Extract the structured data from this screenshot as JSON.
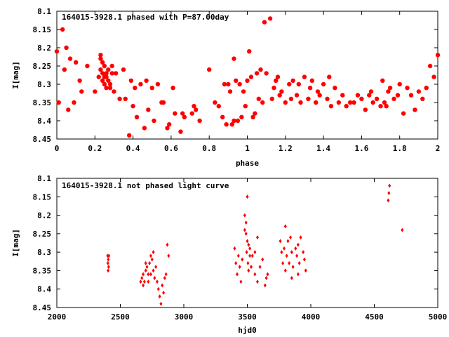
{
  "colors": {
    "points": "#ff0000",
    "axes": "#000000",
    "background": "#ffffff"
  },
  "chart_data": [
    {
      "type": "scatter",
      "title": "164015-3928.1 phased with P=87.00day",
      "xlabel": "phase",
      "ylabel": "I[mag]",
      "xlim": [
        0,
        2
      ],
      "ylim": [
        8.45,
        8.1
      ],
      "y_inverted": true,
      "grid": false,
      "marker": "filled-circle",
      "xticks": [
        "0",
        "0.2",
        "0.4",
        "0.6",
        "0.8",
        "1",
        "1.2",
        "1.4",
        "1.6",
        "1.8",
        "2"
      ],
      "yticks": [
        "8.1",
        "8.15",
        "8.2",
        "8.25",
        "8.3",
        "8.35",
        "8.4",
        "8.45"
      ],
      "series": [
        {
          "x": [
            0.0,
            0.01,
            0.03,
            0.04,
            0.05,
            0.06,
            0.07,
            0.09,
            0.1,
            0.12,
            0.13,
            0.16,
            0.2,
            0.23,
            0.23,
            0.24,
            0.24,
            0.25,
            0.25,
            0.25,
            0.26,
            0.26,
            0.27,
            0.27,
            0.28,
            0.29,
            0.23,
            0.24,
            0.26,
            0.28,
            0.29,
            0.22,
            0.3,
            0.31,
            0.33,
            0.35,
            0.36,
            0.38,
            0.39,
            0.4,
            0.41,
            0.42,
            0.44,
            0.46,
            0.47,
            0.48,
            0.5,
            0.51,
            0.53,
            0.55,
            0.56,
            0.58,
            0.59,
            0.61,
            0.62,
            0.65,
            0.66,
            0.67,
            0.71,
            0.72,
            0.73,
            0.75,
            0.8,
            0.83,
            0.85,
            0.87,
            0.88,
            0.89,
            0.9,
            0.91,
            0.92,
            0.93,
            0.93,
            0.94,
            0.95,
            0.96,
            0.97,
            0.98,
            0.99,
            1.0,
            1.01,
            1.02,
            1.03,
            1.04,
            1.05,
            1.06,
            1.07,
            1.08,
            1.09,
            1.1,
            1.12,
            1.13,
            1.14,
            1.15,
            1.16,
            1.17,
            1.18,
            1.2,
            1.22,
            1.23,
            1.24,
            1.26,
            1.27,
            1.28,
            1.3,
            1.32,
            1.33,
            1.34,
            1.36,
            1.37,
            1.38,
            1.4,
            1.42,
            1.43,
            1.44,
            1.46,
            1.48,
            1.5,
            1.52,
            1.54,
            1.56,
            1.58,
            1.6,
            1.62,
            1.64,
            1.65,
            1.66,
            1.68,
            1.7,
            1.71,
            1.72,
            1.73,
            1.74,
            1.75,
            1.77,
            1.79,
            1.8,
            1.82,
            1.84,
            1.86,
            1.88,
            1.9,
            1.92,
            1.94,
            1.96,
            1.98,
            2.0
          ],
          "y": [
            8.21,
            8.35,
            8.15,
            8.26,
            8.2,
            8.37,
            8.23,
            8.35,
            8.24,
            8.29,
            8.32,
            8.25,
            8.32,
            8.23,
            8.26,
            8.29,
            8.27,
            8.28,
            8.3,
            8.25,
            8.27,
            8.31,
            8.29,
            8.26,
            8.3,
            8.27,
            8.22,
            8.24,
            8.28,
            8.31,
            8.25,
            8.28,
            8.32,
            8.27,
            8.34,
            8.26,
            8.34,
            8.44,
            8.29,
            8.36,
            8.31,
            8.39,
            8.3,
            8.42,
            8.29,
            8.37,
            8.31,
            8.4,
            8.3,
            8.35,
            8.35,
            8.42,
            8.41,
            8.31,
            8.38,
            8.43,
            8.38,
            8.39,
            8.38,
            8.36,
            8.37,
            8.4,
            8.26,
            8.35,
            8.36,
            8.39,
            8.3,
            8.41,
            8.3,
            8.32,
            8.41,
            8.23,
            8.4,
            8.29,
            8.4,
            8.3,
            8.39,
            8.32,
            8.36,
            8.29,
            8.21,
            8.28,
            8.39,
            8.38,
            8.27,
            8.34,
            8.26,
            8.35,
            8.13,
            8.27,
            8.12,
            8.34,
            8.31,
            8.29,
            8.28,
            8.33,
            8.32,
            8.35,
            8.3,
            8.34,
            8.29,
            8.33,
            8.3,
            8.35,
            8.28,
            8.34,
            8.31,
            8.29,
            8.35,
            8.32,
            8.33,
            8.3,
            8.34,
            8.28,
            8.36,
            8.31,
            8.35,
            8.33,
            8.36,
            8.35,
            8.35,
            8.33,
            8.34,
            8.37,
            8.33,
            8.32,
            8.35,
            8.34,
            8.36,
            8.29,
            8.35,
            8.36,
            8.32,
            8.31,
            8.34,
            8.33,
            8.3,
            8.38,
            8.31,
            8.33,
            8.37,
            8.32,
            8.34,
            8.31,
            8.25,
            8.28,
            8.22
          ]
        }
      ]
    },
    {
      "type": "scatter",
      "title": "164015-3928.1 not phased light curve",
      "xlabel": "hjd0",
      "ylabel": "I[mag]",
      "xlim": [
        2000,
        5000
      ],
      "ylim": [
        8.45,
        8.1
      ],
      "y_inverted": true,
      "grid": false,
      "marker": "diamond",
      "xticks": [
        "2000",
        "2500",
        "3000",
        "3500",
        "4000",
        "4500",
        "5000"
      ],
      "yticks": [
        "8.1",
        "8.15",
        "8.2",
        "8.25",
        "8.3",
        "8.35",
        "8.4",
        "8.45"
      ],
      "series": [
        {
          "x": [
            2400,
            2402,
            2404,
            2405,
            2408,
            2410,
            2660,
            2670,
            2680,
            2690,
            2700,
            2710,
            2720,
            2730,
            2740,
            2750,
            2760,
            2770,
            2680,
            2700,
            2720,
            2740,
            2760,
            2780,
            2790,
            2800,
            2810,
            2820,
            2830,
            2840,
            2850,
            2860,
            2870,
            2880,
            3400,
            3410,
            3420,
            3430,
            3440,
            3450,
            3460,
            3480,
            3490,
            3495,
            3500,
            3505,
            3510,
            3520,
            3540,
            3560,
            3580,
            3600,
            3620,
            3640,
            3650,
            3660,
            3480,
            3490,
            3500,
            3510,
            3520,
            3530,
            3560,
            3580,
            3760,
            3770,
            3780,
            3790,
            3800,
            3810,
            3820,
            3830,
            3840,
            3850,
            3860,
            3880,
            3890,
            3900,
            3910,
            3920,
            3940,
            3950,
            3960,
            3800,
            3850,
            3900,
            4610,
            4620,
            4615,
            4720
          ],
          "y": [
            8.31,
            8.33,
            8.35,
            8.32,
            8.34,
            8.31,
            8.38,
            8.37,
            8.36,
            8.38,
            8.35,
            8.34,
            8.36,
            8.33,
            8.31,
            8.32,
            8.35,
            8.37,
            8.39,
            8.33,
            8.38,
            8.36,
            8.3,
            8.34,
            8.38,
            8.4,
            8.42,
            8.44,
            8.39,
            8.41,
            8.37,
            8.36,
            8.28,
            8.31,
            8.29,
            8.33,
            8.36,
            8.31,
            8.34,
            8.38,
            8.32,
            8.24,
            8.22,
            8.3,
            8.27,
            8.33,
            8.35,
            8.29,
            8.31,
            8.36,
            8.38,
            8.34,
            8.32,
            8.39,
            8.37,
            8.36,
            8.2,
            8.25,
            8.15,
            8.28,
            8.31,
            8.34,
            8.3,
            8.26,
            8.27,
            8.3,
            8.33,
            8.29,
            8.35,
            8.31,
            8.27,
            8.33,
            8.26,
            8.3,
            8.34,
            8.29,
            8.31,
            8.36,
            8.33,
            8.26,
            8.3,
            8.32,
            8.35,
            8.23,
            8.37,
            8.28,
            8.16,
            8.12,
            8.14,
            8.24
          ]
        }
      ]
    }
  ]
}
